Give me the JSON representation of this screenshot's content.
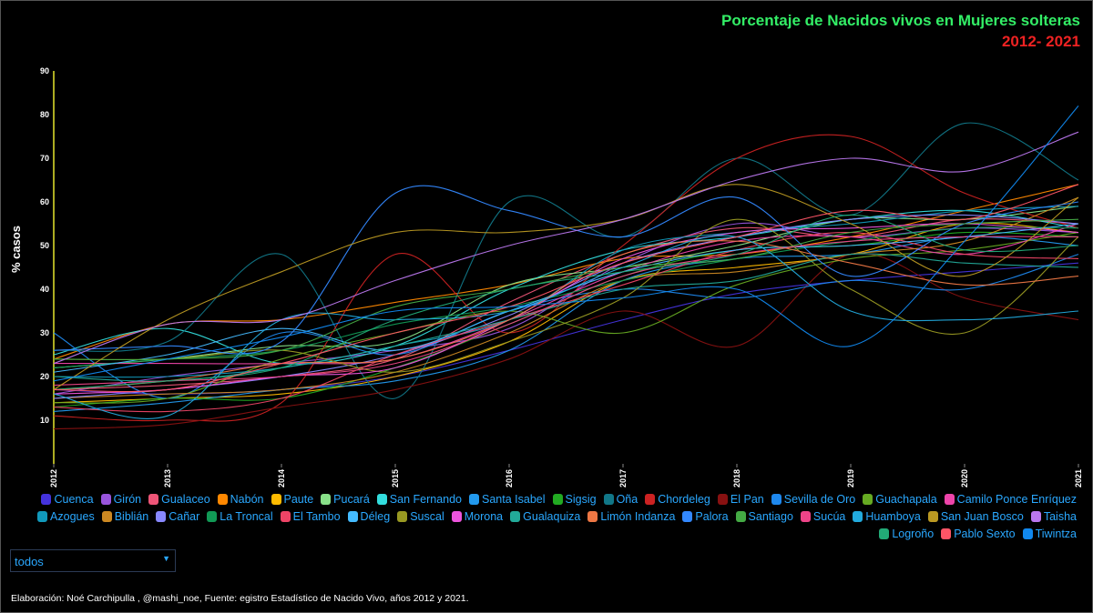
{
  "title": "Porcentaje de Nacidos vivos en Mujeres solteras",
  "subtitle": "2012- 2021",
  "colors": {
    "title": "#33ee66",
    "subtitle": "#ee2222",
    "axis": "#e6e62e",
    "legend_text": "#2aa8ff"
  },
  "dropdown": {
    "value": "todos"
  },
  "footer": "Elaboración: Noé Carchipulla , @mashi_noe, Fuente: egistro Estadístico de Nacido Vivo, años 2012 y 2021.",
  "chart_data": {
    "type": "line",
    "ylabel": "% casos",
    "xlabel": "",
    "x": [
      "2012",
      "2013",
      "2014",
      "2015",
      "2016",
      "2017",
      "2018",
      "2019",
      "2020",
      "2021"
    ],
    "ylim": [
      0,
      90
    ],
    "yticks": [
      "10",
      "20",
      "30",
      "40",
      "50",
      "60",
      "70",
      "80",
      "90"
    ],
    "legend_position": "bottom",
    "series": [
      {
        "name": "Cuenca",
        "color": "#4433dd",
        "values": [
          17,
          16,
          17,
          20,
          26,
          33,
          39,
          42,
          44,
          46
        ]
      },
      {
        "name": "Girón",
        "color": "#9955dd",
        "values": [
          16,
          20,
          23,
          26,
          31,
          46,
          55,
          52,
          54,
          53
        ]
      },
      {
        "name": "Gualaceo",
        "color": "#ee5577",
        "values": [
          17,
          18,
          20,
          24,
          37,
          48,
          54,
          52,
          56,
          55
        ]
      },
      {
        "name": "Nabón",
        "color": "#ff8800",
        "values": [
          24,
          32,
          33,
          37,
          41,
          47,
          48,
          52,
          58,
          64
        ]
      },
      {
        "name": "Paute",
        "color": "#ffbb00",
        "values": [
          14,
          15,
          16,
          20,
          28,
          42,
          45,
          48,
          55,
          53
        ]
      },
      {
        "name": "Pucará",
        "color": "#88e088",
        "values": [
          22,
          24,
          27,
          28,
          41,
          45,
          50,
          56,
          56,
          59
        ]
      },
      {
        "name": "San Fernando",
        "color": "#33dddd",
        "values": [
          25,
          31,
          23,
          27,
          40,
          49,
          52,
          56,
          58,
          54
        ]
      },
      {
        "name": "Santa Isabel",
        "color": "#2299ee",
        "values": [
          12,
          14,
          17,
          19,
          26,
          42,
          47,
          48,
          52,
          50
        ]
      },
      {
        "name": "Sigsig",
        "color": "#22aa22",
        "values": [
          13,
          15,
          15,
          22,
          32,
          43,
          49,
          50,
          53,
          52
        ]
      },
      {
        "name": "Oña",
        "color": "#117788",
        "values": [
          26,
          28,
          48,
          15,
          60,
          52,
          70,
          57,
          78,
          65
        ]
      },
      {
        "name": "Chordeleg",
        "color": "#cc2222",
        "values": [
          11,
          10,
          14,
          48,
          30,
          50,
          70,
          75,
          62,
          54
        ]
      },
      {
        "name": "El Pan",
        "color": "#881111",
        "values": [
          8,
          9,
          13,
          17,
          24,
          35,
          27,
          48,
          38,
          33
        ]
      },
      {
        "name": "Sevilla de Oro",
        "color": "#1e88ee",
        "values": [
          30,
          15,
          30,
          25,
          35,
          40,
          38,
          42,
          40,
          48
        ]
      },
      {
        "name": "Guachapala",
        "color": "#66aa22",
        "values": [
          14,
          15,
          24,
          30,
          35,
          30,
          41,
          47,
          49,
          53
        ]
      },
      {
        "name": "Camilo Ponce Enríquez",
        "color": "#ee44aa",
        "values": [
          23,
          23,
          23,
          24,
          33,
          44,
          51,
          52,
          48,
          55
        ]
      },
      {
        "name": "Azogues",
        "color": "#1199bb",
        "values": [
          20,
          20,
          22,
          27,
          33,
          49,
          53,
          55,
          58,
          59
        ]
      },
      {
        "name": "Biblián",
        "color": "#cc8822",
        "values": [
          15,
          16,
          17,
          21,
          30,
          42,
          44,
          48,
          51,
          61
        ]
      },
      {
        "name": "Cañar",
        "color": "#8888ff",
        "values": [
          15,
          17,
          20,
          25,
          34,
          46,
          52,
          56,
          57,
          55
        ]
      },
      {
        "name": "La Troncal",
        "color": "#119955",
        "values": [
          22,
          24,
          26,
          32,
          36,
          42,
          47,
          51,
          54,
          54
        ]
      },
      {
        "name": "El Tambo",
        "color": "#ee4466",
        "values": [
          13,
          12,
          15,
          25,
          33,
          41,
          49,
          53,
          48,
          47
        ]
      },
      {
        "name": "Déleg",
        "color": "#44bbff",
        "values": [
          21,
          25,
          31,
          26,
          35,
          44,
          49,
          50,
          52,
          55
        ]
      },
      {
        "name": "Suscal",
        "color": "#999922",
        "values": [
          24,
          24,
          26,
          21,
          28,
          38,
          56,
          40,
          30,
          52
        ]
      },
      {
        "name": "Morona",
        "color": "#ee55dd",
        "values": [
          16,
          17,
          20,
          22,
          33,
          47,
          53,
          54,
          55,
          53
        ]
      },
      {
        "name": "Gualaquiza",
        "color": "#22aa99",
        "values": [
          20,
          19,
          22,
          27,
          33,
          40,
          42,
          48,
          46,
          45
        ]
      },
      {
        "name": "Limón Indanza",
        "color": "#ee7744",
        "values": [
          17,
          19,
          23,
          24,
          33,
          48,
          51,
          46,
          41,
          43
        ]
      },
      {
        "name": "Palora",
        "color": "#3388ff",
        "values": [
          26,
          27,
          28,
          62,
          58,
          52,
          61,
          43,
          55,
          60
        ]
      },
      {
        "name": "Santiago",
        "color": "#44aa44",
        "values": [
          24,
          24,
          26,
          36,
          40,
          45,
          47,
          53,
          55,
          56
        ]
      },
      {
        "name": "Sucúa",
        "color": "#ee4488",
        "values": [
          18,
          19,
          20,
          23,
          32,
          43,
          48,
          51,
          52,
          52
        ]
      },
      {
        "name": "Huamboya",
        "color": "#22aadd",
        "values": [
          16,
          11,
          33,
          33,
          35,
          45,
          52,
          35,
          33,
          35
        ]
      },
      {
        "name": "San Juan Bosco",
        "color": "#bb9922",
        "values": [
          17,
          33,
          44,
          53,
          53,
          56,
          64,
          55,
          43,
          61
        ]
      },
      {
        "name": "Taisha",
        "color": "#bb77ee",
        "values": [
          23,
          32,
          33,
          42,
          50,
          56,
          65,
          70,
          67,
          76
        ]
      },
      {
        "name": "Logroño",
        "color": "#22aa77",
        "values": [
          17,
          19,
          22,
          33,
          40,
          44,
          48,
          57,
          49,
          50
        ]
      },
      {
        "name": "Pablo Sexto",
        "color": "#ff5566",
        "values": [
          17,
          17,
          23,
          30,
          36,
          46,
          52,
          58,
          56,
          64
        ]
      },
      {
        "name": "Tiwintza",
        "color": "#1188ee",
        "values": [
          19,
          24,
          29,
          35,
          36,
          38,
          40,
          27,
          51,
          82
        ]
      }
    ]
  }
}
